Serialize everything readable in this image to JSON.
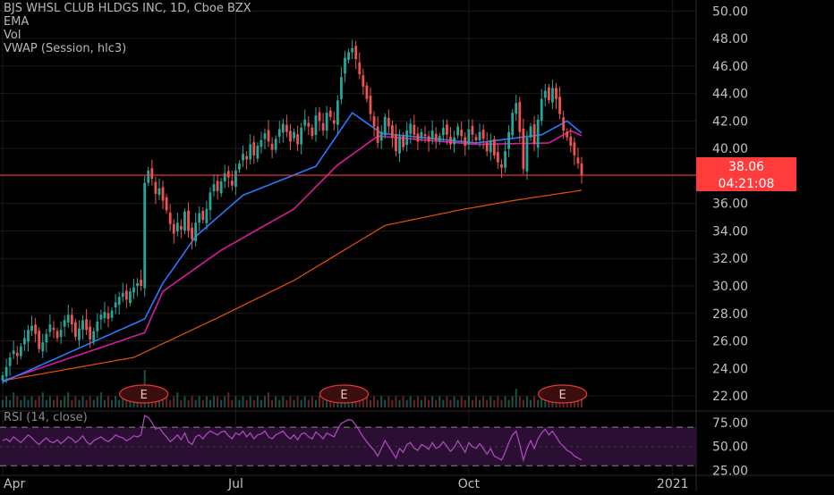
{
  "legend": {
    "title": "BJS WHSL CLUB HLDGS INC, 1D, Cboe BZX",
    "ema": "EMA",
    "vol": "Vol",
    "vwap": "VWAP (Session, hlc3)"
  },
  "rsi_title": "RSI (14, close)",
  "price_tag": {
    "value": "38.06",
    "countdown": "04:21:08"
  },
  "earnings_label": "E",
  "colors": {
    "background": "#000000",
    "up": "#26a69a",
    "down": "#ef5350",
    "ema_fast": "#2979ff",
    "ema_mid": "#d81b9f",
    "ema_slow": "#e65100",
    "rsi_line": "#ab47bc",
    "rsi_band": "#2a0f33",
    "price_line": "#ff3b3b",
    "grid": "#1a1a1a"
  },
  "chart_data": {
    "type": "candlestick",
    "price_axis": {
      "ticks": [
        "50.00",
        "48.00",
        "46.00",
        "44.00",
        "42.00",
        "40.00",
        "38.00",
        "36.00",
        "34.00",
        "32.00",
        "30.00",
        "28.00",
        "26.00",
        "24.00",
        "22.00"
      ],
      "range": [
        20.9,
        50.8
      ]
    },
    "time_axis": {
      "labels": [
        "Apr",
        "Jul",
        "Oct",
        "2021"
      ],
      "label_positions": [
        0,
        64,
        128,
        184
      ]
    },
    "rsi_axis": {
      "ticks": [
        "75.00",
        "50.00",
        "25.00"
      ],
      "range": [
        20,
        85
      ],
      "bands": [
        70,
        30
      ]
    },
    "current_price": 38.06,
    "closes": [
      23.5,
      24.1,
      24.8,
      25.3,
      24.9,
      25.6,
      26.2,
      26.8,
      27.1,
      26.5,
      25.4,
      25.9,
      26.5,
      27.2,
      26.8,
      26.2,
      26.8,
      27.5,
      27.9,
      27.2,
      26.3,
      26.9,
      27.5,
      26.8,
      26.1,
      26.7,
      27.4,
      27.9,
      28.1,
      27.6,
      28.2,
      28.8,
      29.2,
      29.5,
      29.0,
      29.6,
      29.9,
      30.2,
      30.0,
      37.5,
      38.4,
      37.8,
      36.7,
      37.1,
      36.2,
      35.5,
      34.5,
      33.8,
      34.6,
      34.1,
      35.4,
      34.0,
      33.4,
      34.6,
      35.3,
      34.8,
      35.6,
      36.8,
      37.4,
      36.9,
      37.6,
      38.2,
      37.9,
      37.3,
      38.4,
      38.9,
      39.6,
      39.2,
      40.3,
      39.5,
      40.2,
      40.6,
      41.1,
      40.5,
      39.9,
      40.7,
      41.4,
      41.8,
      41.2,
      40.5,
      41.2,
      40.3,
      41.5,
      42.1,
      41.6,
      40.9,
      42.4,
      42.0,
      41.3,
      42.6,
      42.3,
      41.8,
      43.5,
      45.2,
      46.6,
      47.0,
      47.3,
      46.5,
      45.4,
      44.5,
      43.6,
      42.5,
      41.6,
      40.4,
      41.2,
      42.3,
      41.6,
      40.8,
      39.8,
      40.9,
      40.1,
      41.3,
      41.8,
      41.0,
      40.5,
      41.2,
      40.9,
      40.5,
      41.3,
      40.6,
      40.9,
      41.5,
      41.0,
      40.3,
      40.8,
      41.6,
      40.9,
      40.2,
      41.4,
      41.0,
      40.6,
      41.2,
      40.7,
      39.8,
      40.6,
      39.5,
      39.0,
      38.6,
      39.8,
      41.2,
      42.6,
      43.3,
      41.2,
      38.5,
      40.8,
      41.6,
      40.3,
      42.1,
      43.6,
      44.2,
      43.5,
      44.4,
      43.6,
      42.5,
      41.3,
      40.8,
      40.2,
      39.5,
      38.9,
      38.06
    ],
    "volume_relative": [
      0.2,
      0.3,
      0.2,
      0.4,
      0.3,
      0.2,
      0.3,
      0.2,
      0.3,
      0.2,
      0.3,
      0.4,
      0.2,
      0.3,
      0.2,
      0.3,
      0.2,
      0.3,
      0.4,
      0.2,
      0.3,
      0.2,
      0.3,
      0.2,
      0.3,
      0.2,
      0.3,
      0.4,
      0.2,
      0.3,
      0.2,
      0.3,
      0.2,
      0.3,
      0.2,
      0.4,
      0.3,
      0.2,
      0.5,
      1.0,
      0.6,
      0.4,
      0.3,
      0.3,
      0.2,
      0.3,
      0.2,
      0.3,
      0.4,
      0.2,
      0.3,
      0.2,
      0.3,
      0.2,
      0.3,
      0.2,
      0.3,
      0.2,
      0.3,
      0.3,
      0.2,
      0.3,
      0.4,
      0.2,
      0.3,
      0.2,
      0.3,
      0.2,
      0.3,
      0.2,
      0.3,
      0.2,
      0.3,
      0.4,
      0.2,
      0.3,
      0.2,
      0.3,
      0.2,
      0.3,
      0.2,
      0.3,
      0.2,
      0.3,
      0.2,
      0.3,
      0.2,
      0.3,
      0.2,
      0.3,
      0.2,
      0.3,
      0.4,
      0.6,
      0.3,
      0.2,
      0.3,
      0.2,
      0.3,
      0.2,
      0.3,
      0.2,
      0.3,
      0.2,
      0.3,
      0.2,
      0.3,
      0.2,
      0.3,
      0.2,
      0.3,
      0.2,
      0.3,
      0.2,
      0.3,
      0.2,
      0.3,
      0.2,
      0.3,
      0.2,
      0.3,
      0.2,
      0.3,
      0.2,
      0.3,
      0.2,
      0.3,
      0.2,
      0.3,
      0.2,
      0.3,
      0.2,
      0.3,
      0.2,
      0.3,
      0.2,
      0.3,
      0.2,
      0.3,
      0.2,
      0.3,
      0.5,
      0.3,
      0.2,
      0.3,
      0.2,
      0.3,
      0.2,
      0.3,
      0.2,
      0.3,
      0.2,
      0.4,
      0.3,
      0.2,
      0.3,
      0.2,
      0.3,
      0.2,
      0.3
    ],
    "earnings_bars": [
      39,
      94,
      154
    ],
    "ema_fast_anchor": [
      [
        0,
        23.0
      ],
      [
        39,
        27.6
      ],
      [
        44,
        30.2
      ],
      [
        53,
        33.6
      ],
      [
        66,
        36.6
      ],
      [
        86,
        38.7
      ],
      [
        96,
        42.6
      ],
      [
        104,
        41.1
      ],
      [
        130,
        40.4
      ],
      [
        148,
        41.0
      ],
      [
        155,
        42.0
      ],
      [
        160,
        40.9
      ]
    ],
    "ema_mid_anchor": [
      [
        0,
        23.1
      ],
      [
        39,
        26.6
      ],
      [
        44,
        29.6
      ],
      [
        60,
        32.6
      ],
      [
        80,
        35.6
      ],
      [
        92,
        38.8
      ],
      [
        103,
        40.9
      ],
      [
        130,
        40.3
      ],
      [
        150,
        40.4
      ],
      [
        156,
        41.3
      ],
      [
        160,
        40.8
      ]
    ],
    "ema_slow_anchor": [
      [
        0,
        23.1
      ],
      [
        36,
        24.8
      ],
      [
        60,
        27.8
      ],
      [
        80,
        30.4
      ],
      [
        95,
        32.8
      ],
      [
        105,
        34.4
      ],
      [
        125,
        35.5
      ],
      [
        140,
        36.2
      ],
      [
        150,
        36.6
      ],
      [
        160,
        37.0
      ]
    ],
    "rsi_values": [
      56,
      58,
      55,
      60,
      57,
      54,
      58,
      62,
      59,
      55,
      52,
      56,
      59,
      55,
      54,
      57,
      53,
      56,
      60,
      58,
      54,
      57,
      61,
      55,
      52,
      56,
      58,
      60,
      57,
      55,
      58,
      62,
      60,
      59,
      56,
      58,
      61,
      60,
      62,
      82,
      80,
      75,
      68,
      70,
      64,
      60,
      55,
      58,
      62,
      57,
      64,
      55,
      52,
      60,
      62,
      58,
      63,
      66,
      64,
      62,
      65,
      66,
      61,
      58,
      64,
      62,
      66,
      60,
      64,
      58,
      62,
      63,
      66,
      60,
      58,
      62,
      64,
      66,
      61,
      58,
      62,
      57,
      63,
      64,
      60,
      58,
      65,
      62,
      58,
      64,
      62,
      60,
      68,
      74,
      76,
      78,
      77,
      72,
      66,
      60,
      55,
      50,
      46,
      40,
      48,
      56,
      50,
      44,
      38,
      48,
      44,
      52,
      54,
      48,
      46,
      52,
      50,
      47,
      54,
      48,
      50,
      55,
      50,
      45,
      49,
      56,
      50,
      44,
      54,
      50,
      48,
      53,
      48,
      42,
      48,
      40,
      38,
      36,
      44,
      54,
      62,
      66,
      52,
      36,
      48,
      56,
      48,
      58,
      64,
      68,
      62,
      66,
      60,
      54,
      50,
      46,
      44,
      40,
      38,
      36
    ]
  }
}
